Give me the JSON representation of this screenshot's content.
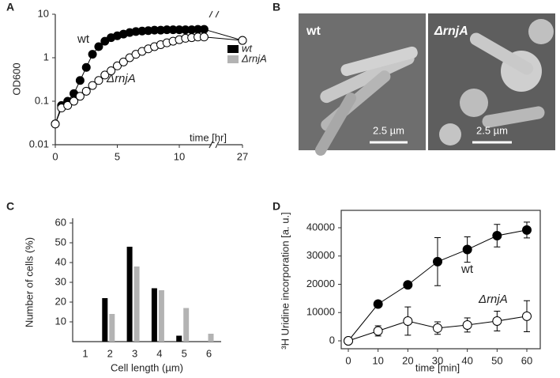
{
  "chart_data": [
    {
      "panel": "A",
      "type": "line",
      "log_y": true,
      "ylabel": "OD600",
      "x_annotation": "time [hr]",
      "x": [
        0,
        0.5,
        1,
        1.5,
        2,
        2.5,
        3,
        3.5,
        4,
        4.5,
        5,
        5.5,
        6,
        6.5,
        7,
        7.5,
        8,
        8.5,
        9,
        9.5,
        10,
        10.5,
        11,
        11.5,
        12,
        27
      ],
      "series": [
        {
          "name": "wt",
          "color": "#000000",
          "marker_fill": "#000000",
          "values": [
            0.03,
            0.08,
            0.1,
            0.15,
            0.3,
            0.6,
            1.2,
            1.8,
            2.4,
            2.9,
            3.2,
            3.5,
            3.8,
            4,
            4.1,
            4.2,
            4.3,
            4.3,
            4.4,
            4.4,
            4.4,
            4.4,
            4.4,
            4.5,
            4.5,
            2.5
          ]
        },
        {
          "name": "ΔrnjA",
          "color": "#000000",
          "marker_fill": "#ffffff",
          "values": [
            0.03,
            0.07,
            0.08,
            0.1,
            0.13,
            0.17,
            0.23,
            0.3,
            0.4,
            0.5,
            0.65,
            0.8,
            1,
            1.2,
            1.4,
            1.6,
            1.8,
            2,
            2.2,
            2.4,
            2.6,
            2.8,
            2.9,
            3,
            3,
            2.5
          ]
        }
      ],
      "xlim": [
        0,
        27
      ],
      "ylim": [
        0.01,
        10
      ],
      "xticks": [
        0,
        5,
        10,
        27
      ],
      "yticks": [
        0.01,
        0.1,
        1,
        10
      ]
    },
    {
      "panel": "C",
      "type": "bar",
      "ylabel": "Number of cells (%)",
      "xlabel": "Cell length (µm)",
      "categories": [
        "1",
        "2",
        "3",
        "4",
        "5",
        "6"
      ],
      "series": [
        {
          "name": "wt",
          "color": "#000000",
          "values": [
            0,
            22,
            48,
            27,
            3,
            0
          ]
        },
        {
          "name": "ΔrnjA",
          "color": "#b3b3b3",
          "values": [
            0,
            14,
            38,
            26,
            17,
            4
          ]
        }
      ],
      "ylim": [
        0,
        60
      ],
      "yticks": [
        10,
        20,
        30,
        40,
        50,
        60
      ],
      "legend": "upper right"
    },
    {
      "panel": "D",
      "type": "line",
      "log_y": false,
      "ylabel": "³H Uridine incorporation [a. u.]",
      "xlabel": "time [min]",
      "x": [
        0,
        10,
        20,
        30,
        40,
        50,
        60
      ],
      "series": [
        {
          "name": "wt",
          "color": "#000000",
          "marker_fill": "#000000",
          "values": [
            0,
            13000,
            19800,
            28000,
            32300,
            37200,
            39200
          ],
          "errors": [
            0,
            0,
            0,
            8500,
            4500,
            4000,
            2800
          ]
        },
        {
          "name": "ΔrnjA",
          "color": "#000000",
          "marker_fill": "#ffffff",
          "values": [
            0,
            3500,
            7000,
            4500,
            5600,
            7000,
            8700
          ],
          "errors": [
            0,
            1800,
            5000,
            2200,
            2500,
            3500,
            5500
          ]
        }
      ],
      "xlim": [
        0,
        60
      ],
      "ylim": [
        0,
        40000
      ],
      "xticks": [
        0,
        10,
        20,
        30,
        40,
        50,
        60
      ],
      "yticks": [
        0,
        10000,
        20000,
        30000,
        40000
      ]
    }
  ],
  "image_panel": {
    "panel": "B",
    "images": [
      {
        "label": "wt",
        "scale_bar": "2.5 µm"
      },
      {
        "label": "ΔrnjA",
        "scale_bar": "2.5 µm"
      }
    ]
  }
}
